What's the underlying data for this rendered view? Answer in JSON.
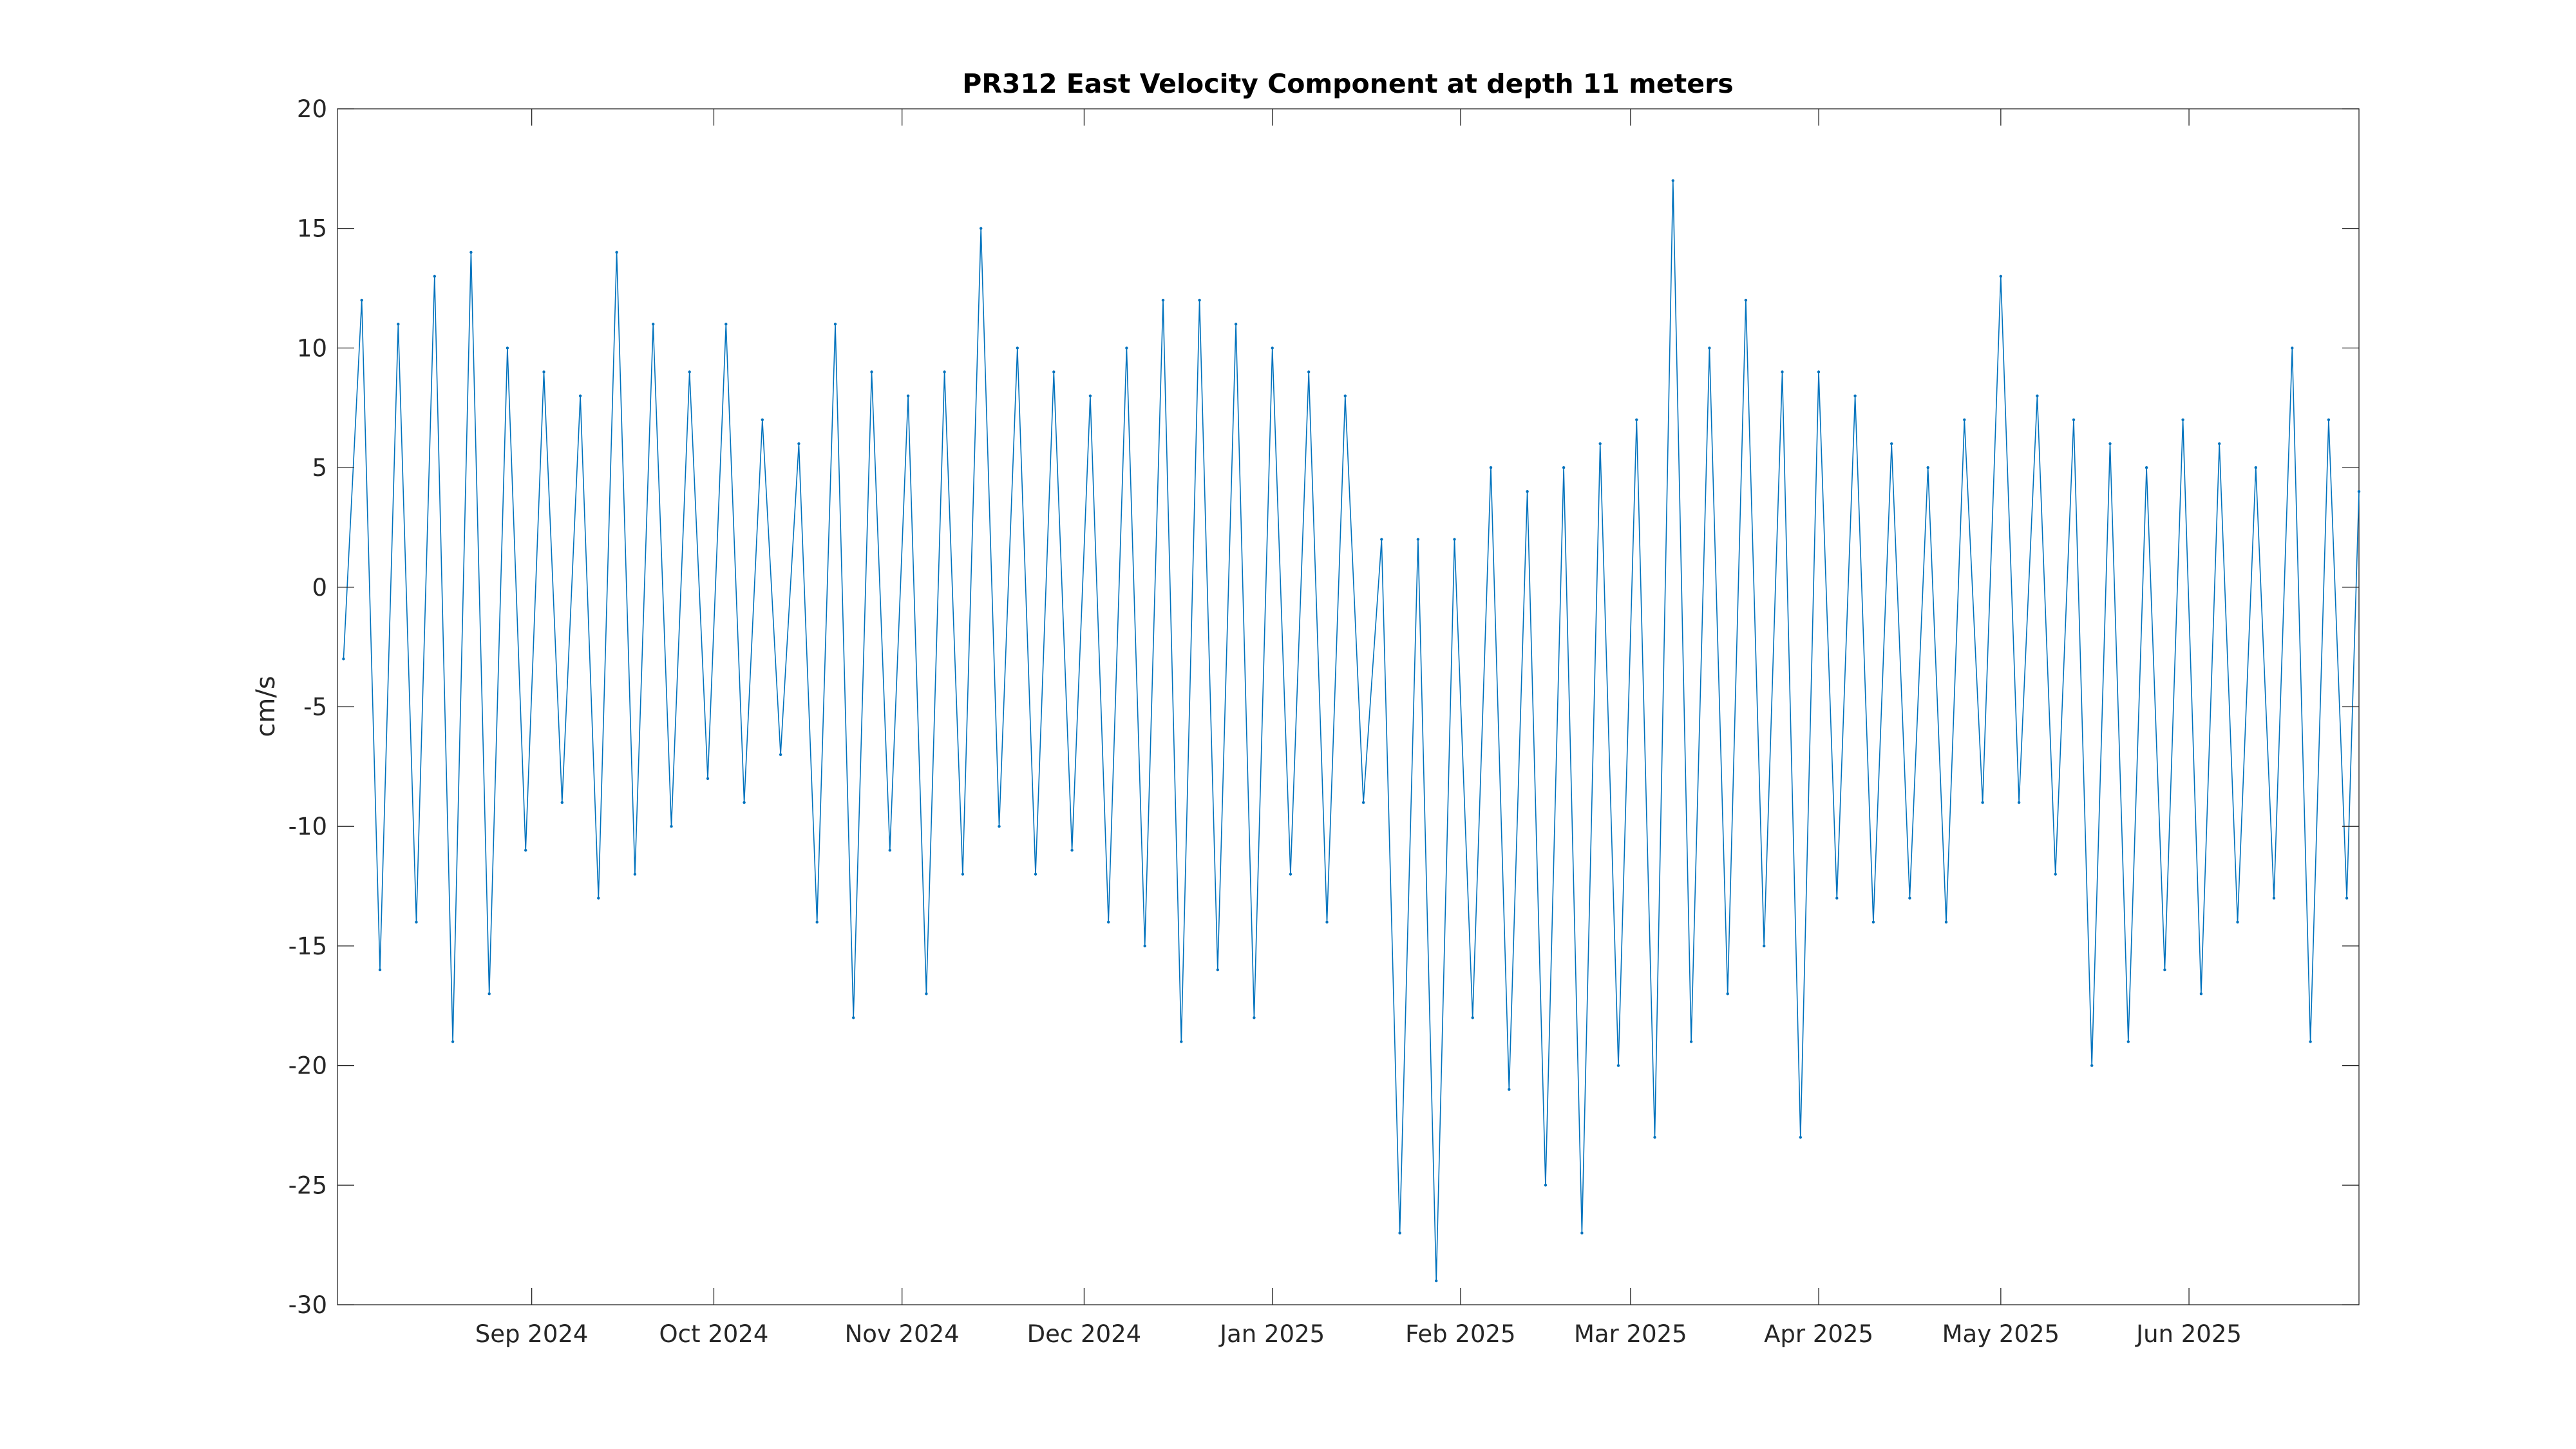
{
  "chart_data": {
    "type": "line",
    "title": "PR312 East Velocity Component at depth 11 meters",
    "xlabel": "",
    "ylabel": "cm/s",
    "xlim": [
      "2024-07-31",
      "2025-06-29"
    ],
    "ylim": [
      -30,
      20
    ],
    "grid": false,
    "legend": "none",
    "y_ticks": [
      20,
      15,
      10,
      5,
      0,
      -5,
      -10,
      -15,
      -20,
      -25,
      -30
    ],
    "y_tick_labels": [
      "20",
      "15",
      "10",
      "5",
      "0",
      "-5",
      "-10",
      "-15",
      "-20",
      "-25",
      "-30"
    ],
    "x_ticks": [
      {
        "date": "2024-09-01",
        "label": "Sep 2024"
      },
      {
        "date": "2024-10-01",
        "label": "Oct 2024"
      },
      {
        "date": "2024-11-01",
        "label": "Nov 2024"
      },
      {
        "date": "2024-12-01",
        "label": "Dec 2024"
      },
      {
        "date": "2025-01-01",
        "label": "Jan 2025"
      },
      {
        "date": "2025-02-01",
        "label": "Feb 2025"
      },
      {
        "date": "2025-03-01",
        "label": "Mar 2025"
      },
      {
        "date": "2025-04-01",
        "label": "Apr 2025"
      },
      {
        "date": "2025-05-01",
        "label": "May 2025"
      },
      {
        "date": "2025-06-01",
        "label": "Jun 2025"
      }
    ],
    "series": [
      {
        "color": "#0072BD",
        "x": [
          "2024-08-01",
          "2024-08-04",
          "2024-08-07",
          "2024-08-10",
          "2024-08-13",
          "2024-08-16",
          "2024-08-19",
          "2024-08-22",
          "2024-08-25",
          "2024-08-28",
          "2024-08-31",
          "2024-09-03",
          "2024-09-06",
          "2024-09-09",
          "2024-09-12",
          "2024-09-15",
          "2024-09-18",
          "2024-09-21",
          "2024-09-24",
          "2024-09-27",
          "2024-09-30",
          "2024-10-03",
          "2024-10-06",
          "2024-10-09",
          "2024-10-12",
          "2024-10-15",
          "2024-10-18",
          "2024-10-21",
          "2024-10-24",
          "2024-10-27",
          "2024-10-30",
          "2024-11-02",
          "2024-11-05",
          "2024-11-08",
          "2024-11-11",
          "2024-11-14",
          "2024-11-17",
          "2024-11-20",
          "2024-11-23",
          "2024-11-26",
          "2024-11-29",
          "2024-12-02",
          "2024-12-05",
          "2024-12-08",
          "2024-12-11",
          "2024-12-14",
          "2024-12-17",
          "2024-12-20",
          "2024-12-23",
          "2024-12-26",
          "2024-12-29",
          "2025-01-01",
          "2025-01-04",
          "2025-01-07",
          "2025-01-10",
          "2025-01-13",
          "2025-01-16",
          "2025-01-19",
          "2025-01-22",
          "2025-01-25",
          "2025-01-28",
          "2025-01-31",
          "2025-02-03",
          "2025-02-06",
          "2025-02-09",
          "2025-02-12",
          "2025-02-15",
          "2025-02-18",
          "2025-02-21",
          "2025-02-24",
          "2025-02-27",
          "2025-03-02",
          "2025-03-05",
          "2025-03-08",
          "2025-03-11",
          "2025-03-14",
          "2025-03-17",
          "2025-03-20",
          "2025-03-23",
          "2025-03-26",
          "2025-03-29",
          "2025-04-01",
          "2025-04-04",
          "2025-04-07",
          "2025-04-10",
          "2025-04-13",
          "2025-04-16",
          "2025-04-19",
          "2025-04-22",
          "2025-04-25",
          "2025-04-28",
          "2025-05-01",
          "2025-05-04",
          "2025-05-07",
          "2025-05-10",
          "2025-05-13",
          "2025-05-16",
          "2025-05-19",
          "2025-05-22",
          "2025-05-25",
          "2025-05-28",
          "2025-05-31",
          "2025-06-03",
          "2025-06-06",
          "2025-06-09",
          "2025-06-12",
          "2025-06-15",
          "2025-06-18",
          "2025-06-21",
          "2025-06-24",
          "2025-06-27",
          "2025-06-29"
        ],
        "y": [
          -3,
          12,
          -16,
          11,
          -14,
          13,
          -19,
          14,
          -17,
          10,
          -11,
          9,
          -9,
          8,
          -13,
          14,
          -12,
          11,
          -10,
          9,
          -8,
          11,
          -9,
          7,
          -7,
          6,
          -14,
          11,
          -18,
          9,
          -11,
          8,
          -17,
          9,
          -12,
          15,
          -10,
          10,
          -12,
          9,
          -11,
          8,
          -14,
          10,
          -15,
          12,
          -19,
          12,
          -16,
          11,
          -18,
          10,
          -12,
          9,
          -14,
          8,
          -9,
          2,
          -27,
          2,
          -29,
          2,
          -18,
          5,
          -21,
          4,
          -25,
          5,
          -27,
          6,
          -20,
          7,
          -23,
          17,
          -19,
          10,
          -17,
          12,
          -15,
          9,
          -23,
          9,
          -13,
          8,
          -14,
          6,
          -13,
          5,
          -14,
          7,
          -9,
          13,
          -9,
          8,
          -12,
          7,
          -20,
          6,
          -19,
          5,
          -16,
          7,
          -17,
          6,
          -14,
          5,
          -13,
          10,
          -19,
          7,
          -13,
          4
        ]
      }
    ]
  }
}
